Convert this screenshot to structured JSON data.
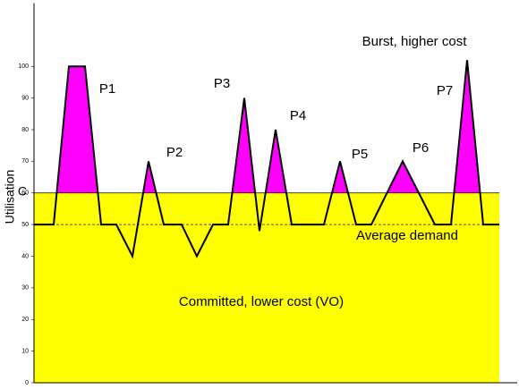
{
  "chart_data": {
    "type": "line",
    "y_label": "Utilisation",
    "x": [
      0,
      22,
      39,
      57,
      75,
      92,
      110,
      128,
      145,
      165,
      182,
      200,
      217,
      235,
      252,
      270,
      288,
      324,
      342,
      360,
      377,
      412,
      448,
      466,
      484,
      502,
      520
    ],
    "series": [
      {
        "color": "#000000",
        "values": [
          50,
          50,
          100,
          100,
          50,
          50,
          40,
          70,
          50,
          50,
          40,
          50,
          50,
          90,
          48,
          80,
          50,
          50,
          70,
          50,
          50,
          70,
          50,
          50,
          102,
          50,
          50
        ]
      }
    ],
    "xlim": [
      0,
      520
    ],
    "ylim": [
      0,
      120
    ],
    "yticks": [
      0,
      10,
      20,
      30,
      40,
      50,
      60,
      70,
      80,
      90,
      100
    ],
    "committed_level": {
      "value": 60,
      "label": "C",
      "color": "#ffff00"
    },
    "burst_color": "#ff00ff",
    "average_demand": {
      "value": 50,
      "label": "Average demand"
    },
    "annotations": [
      "Burst, higher cost",
      "Committed, lower cost (VO)",
      "P1",
      "P2",
      "P3",
      "P4",
      "P5",
      "P6",
      "P7"
    ]
  }
}
